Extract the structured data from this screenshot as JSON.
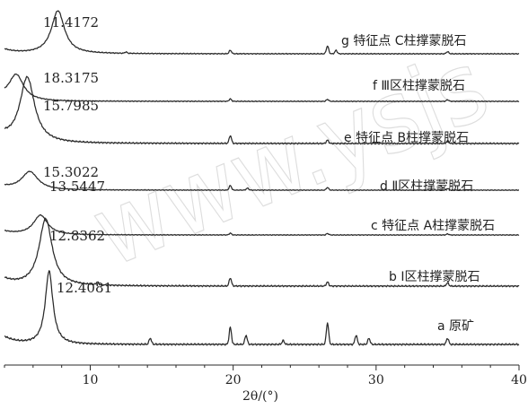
{
  "chart_data": {
    "type": "line",
    "xlabel": "2θ/(°)",
    "xlim": [
      4,
      40
    ],
    "x_ticks": [
      10,
      20,
      30,
      40
    ],
    "grid": false,
    "watermark": "www.ysjs",
    "series": [
      {
        "name": "a 原矿",
        "peak_label": "12.4081",
        "peak_x": 7.12,
        "peak_height": 0.95,
        "peak_width": 0.32,
        "minor_peaks": [
          [
            14.2,
            0.08
          ],
          [
            19.8,
            0.22
          ],
          [
            20.9,
            0.12
          ],
          [
            23.5,
            0.05
          ],
          [
            26.6,
            0.28
          ],
          [
            28.6,
            0.12
          ],
          [
            29.5,
            0.08
          ],
          [
            35.0,
            0.08
          ]
        ]
      },
      {
        "name": "b Ⅰ区柱撑蒙脱石",
        "peak_label": "12.8362",
        "peak_x": 6.88,
        "peak_height": 1.0,
        "peak_width": 0.55,
        "minor_peaks": [
          [
            10.5,
            0.04
          ],
          [
            19.8,
            0.12
          ],
          [
            26.6,
            0.06
          ],
          [
            35.0,
            0.05
          ]
        ]
      },
      {
        "name": "c 特征点 A柱撑蒙脱石",
        "peak_label": "13.5447",
        "peak_x": 6.52,
        "peak_height": 0.55,
        "peak_width": 0.6,
        "minor_peaks": [
          [
            19.8,
            0.05
          ],
          [
            26.6,
            0.04
          ],
          [
            35.0,
            0.03
          ]
        ]
      },
      {
        "name": "d Ⅱ区柱撑蒙脱石",
        "peak_label": "15.3022",
        "peak_x": 5.77,
        "peak_height": 0.55,
        "peak_width": 0.7,
        "minor_peaks": [
          [
            19.8,
            0.14
          ],
          [
            21.0,
            0.06
          ],
          [
            26.6,
            0.08
          ],
          [
            35.0,
            0.05
          ]
        ]
      },
      {
        "name": "e 特征点 B柱撑蒙脱石",
        "peak_label": "15.7985",
        "peak_x": 5.59,
        "peak_height": 1.0,
        "peak_width": 0.62,
        "minor_peaks": [
          [
            19.8,
            0.12
          ],
          [
            26.6,
            0.05
          ],
          [
            35.0,
            0.04
          ]
        ]
      },
      {
        "name": "f Ⅲ区柱撑蒙脱石",
        "peak_label": "18.3175",
        "peak_x": 4.82,
        "peak_height": 0.65,
        "peak_width": 0.62,
        "minor_peaks": [
          [
            19.8,
            0.06
          ],
          [
            26.6,
            0.05
          ],
          [
            35.0,
            0.04
          ]
        ]
      },
      {
        "name": "g 特征点 C柱撑蒙脱石",
        "peak_label": "11.4172",
        "peak_x": 7.74,
        "peak_height": 1.0,
        "peak_width": 0.55,
        "minor_peaks": [
          [
            12.5,
            0.03
          ],
          [
            19.8,
            0.08
          ],
          [
            26.6,
            0.18
          ],
          [
            27.2,
            0.08
          ],
          [
            35.0,
            0.05
          ]
        ]
      }
    ]
  }
}
